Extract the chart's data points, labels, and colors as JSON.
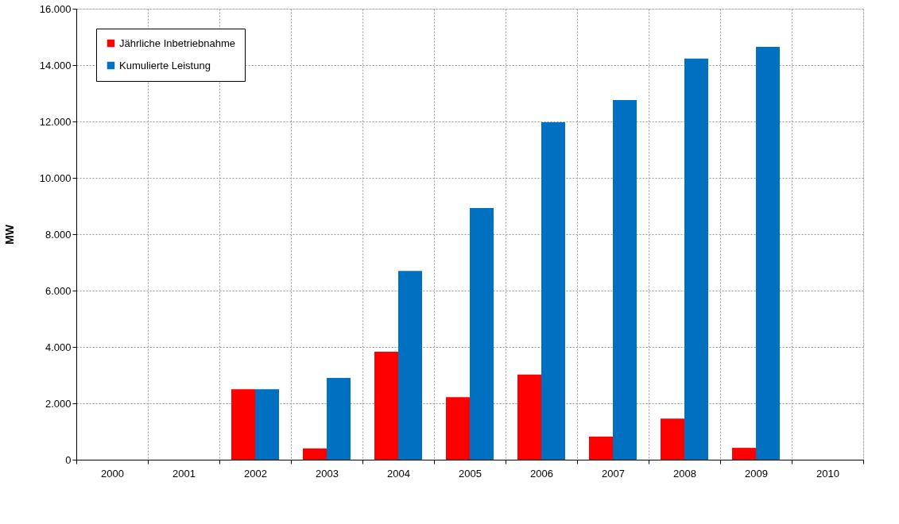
{
  "chart_data": {
    "type": "bar",
    "ylabel": "MW",
    "categories": [
      "2000",
      "2001",
      "2002",
      "2003",
      "2004",
      "2005",
      "2006",
      "2007",
      "2008",
      "2009",
      "2010"
    ],
    "series": [
      {
        "name": "Jährliche Inbetriebnahme",
        "color": "#ff0000",
        "values": [
          null,
          null,
          2500,
          400,
          3830,
          2220,
          3020,
          820,
          1460,
          420,
          null
        ]
      },
      {
        "name": "Kumulierte Leistung",
        "color": "#0070c0",
        "values": [
          null,
          null,
          2500,
          2900,
          6700,
          8930,
          11970,
          12760,
          14230,
          14650,
          null
        ]
      }
    ],
    "ylim": [
      0,
      16000
    ],
    "yticks": [
      {
        "value": 0,
        "label": "0"
      },
      {
        "value": 2000,
        "label": "2.000"
      },
      {
        "value": 4000,
        "label": "4.000"
      },
      {
        "value": 6000,
        "label": "6.000"
      },
      {
        "value": 8000,
        "label": "8.000"
      },
      {
        "value": 10000,
        "label": "10.000"
      },
      {
        "value": 12000,
        "label": "12.000"
      },
      {
        "value": 14000,
        "label": "14.000"
      },
      {
        "value": 16000,
        "label": "16.000"
      }
    ],
    "grid": true,
    "legend": "top left"
  }
}
